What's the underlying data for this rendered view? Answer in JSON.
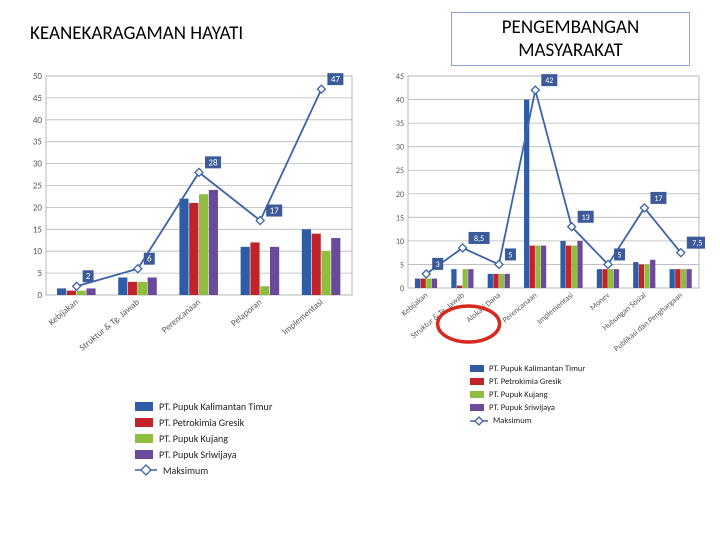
{
  "titles": {
    "left": "KEANEKARAGAMAN HAYATI",
    "right": "PENGEMBANGAN MASYARAKAT"
  },
  "series_names": {
    "pkt": "PT. Pupuk Kalimantan Timur",
    "pg": "PT. Petrokimia Gresik",
    "pk": "PT. Pupuk Kujang",
    "ps": "PT. Pupuk Sriwijaya",
    "max": "Maksimum"
  },
  "colors": {
    "pkt": "#2e5ca6",
    "pg": "#c0232a",
    "pk": "#8fbe3f",
    "ps": "#6b4a9b",
    "max_line": "#3b64a8",
    "max_marker": "#3b64a8",
    "grid": "#b7b7b7",
    "axis": "#808080",
    "label_text": "#595959",
    "data_label_bg": "#3c5a99",
    "data_label_tx": "#ffffff",
    "highlight_ring": "#d62a1f",
    "bg": "#ffffff"
  },
  "chart1": {
    "type": "bar-with-max-line",
    "ylim": [
      0,
      50
    ],
    "ystep": 5,
    "categories": [
      "Kebijakan",
      "Struktur & Tg. Jawab",
      "Perencanaan",
      "Pelaporan",
      "Implementasi"
    ],
    "bars": {
      "pkt": [
        1.5,
        4,
        22,
        11,
        15
      ],
      "pg": [
        1,
        3,
        21,
        12,
        14
      ],
      "pk": [
        1,
        3,
        23,
        2,
        10
      ],
      "ps": [
        1.5,
        4,
        24,
        11,
        13
      ]
    },
    "max": [
      2,
      6,
      28,
      17,
      47
    ],
    "bar_group_width": 0.64,
    "bar_gap": 0.01,
    "label_fontsize": 9,
    "tick_fontsize": 9,
    "data_label_fontsize": 9
  },
  "chart2": {
    "type": "bar-with-max-line",
    "ylim": [
      0,
      45
    ],
    "ystep": 5,
    "categories": [
      "Kebijakan",
      "Struktur & Tg. Jawab",
      "Alokasi Dana",
      "Perencanaan",
      "Implementasi",
      "Monev",
      "Hubungan Sosial",
      "Publikasi dan Penghargaan"
    ],
    "bars": {
      "pkt": [
        2,
        4,
        3,
        40,
        10,
        4,
        5.5,
        4
      ],
      "pg": [
        2,
        0.5,
        3,
        9,
        9,
        4,
        5,
        4
      ],
      "pk": [
        2,
        4,
        3,
        9,
        9,
        4,
        5,
        4
      ],
      "ps": [
        2,
        4,
        3,
        9,
        10,
        4,
        6,
        4
      ]
    },
    "max": [
      3,
      8.5,
      5,
      42,
      13,
      5,
      17,
      7.5
    ],
    "extra_end_label": 6.5,
    "highlight_index": 1,
    "bar_group_width": 0.62,
    "bar_gap": 0.01,
    "label_fontsize": 8,
    "tick_fontsize": 8,
    "data_label_fontsize": 8
  },
  "legend_order": [
    "pkt",
    "pg",
    "pk",
    "ps",
    "max"
  ]
}
